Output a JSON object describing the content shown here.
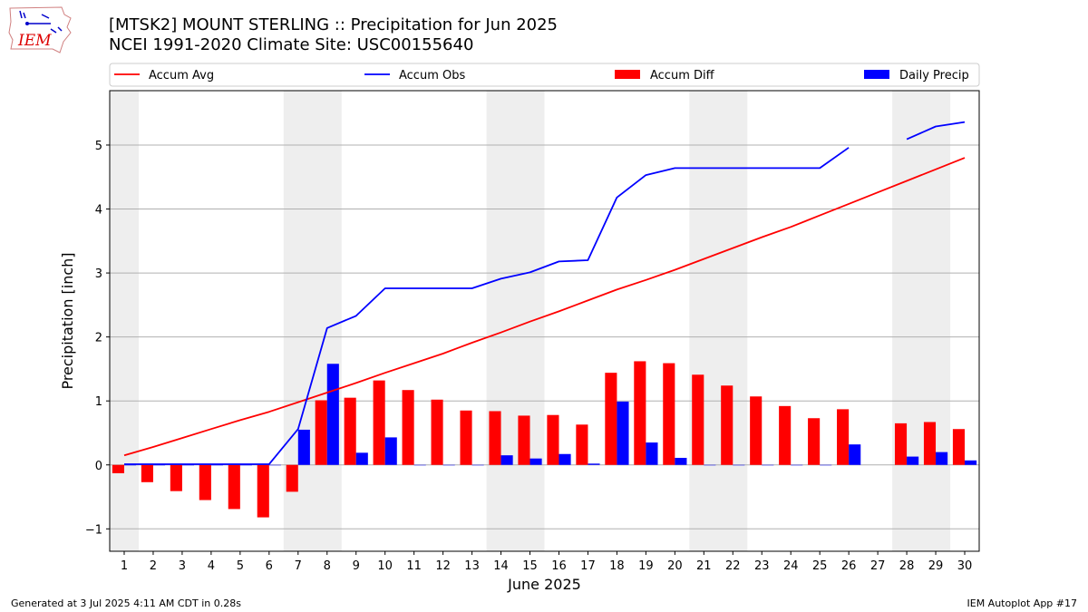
{
  "header": {
    "title_line1": "[MTSK2] MOUNT STERLING :: Precipitation for Jun 2025",
    "title_line2": "NCEI 1991-2020 Climate Site: USC00155640",
    "logo_text": "IEM"
  },
  "footer": {
    "left": "Generated at 3 Jul 2025 4:11 AM CDT in 0.28s",
    "right": "IEM Autoplot App #17"
  },
  "colors": {
    "accum_avg": "#ff0000",
    "accum_obs": "#0000ff",
    "accum_diff": "#ff0000",
    "daily_precip": "#0000ff",
    "weekend_shade": "#eeeeee",
    "grid": "#b0b0b0"
  },
  "chart_data": {
    "type": "bar",
    "xlabel": "June 2025",
    "ylabel": "Precipitation [inch]",
    "ylim": [
      -1.35,
      5.85
    ],
    "yticks": [
      -1,
      0,
      1,
      2,
      3,
      4,
      5
    ],
    "ytick_labels": [
      "−1",
      "0",
      "1",
      "2",
      "3",
      "4",
      "5"
    ],
    "x": [
      1,
      2,
      3,
      4,
      5,
      6,
      7,
      8,
      9,
      10,
      11,
      12,
      13,
      14,
      15,
      16,
      17,
      18,
      19,
      20,
      21,
      22,
      23,
      24,
      25,
      26,
      27,
      28,
      29,
      30
    ],
    "grid": "horizontal",
    "legend_position": "top",
    "shaded_days": [
      [
        1,
        1
      ],
      [
        7,
        8
      ],
      [
        14,
        15
      ],
      [
        21,
        22
      ],
      [
        28,
        29
      ]
    ],
    "series": [
      {
        "name": "Accum Avg",
        "kind": "line",
        "values": [
          0.15,
          0.28,
          0.42,
          0.56,
          0.7,
          0.83,
          0.98,
          1.13,
          1.28,
          1.44,
          1.59,
          1.74,
          1.91,
          2.07,
          2.24,
          2.4,
          2.57,
          2.74,
          2.89,
          3.05,
          3.22,
          3.39,
          3.56,
          3.72,
          3.9,
          4.08,
          4.26,
          4.44,
          4.62,
          4.8
        ]
      },
      {
        "name": "Accum Obs",
        "kind": "line",
        "values": [
          0.01,
          0.01,
          0.01,
          0.01,
          0.01,
          0.01,
          0.56,
          2.14,
          2.33,
          2.76,
          2.76,
          2.76,
          2.76,
          2.91,
          3.01,
          3.18,
          3.2,
          4.18,
          4.53,
          4.64,
          4.64,
          4.64,
          4.64,
          4.64,
          4.64,
          4.96,
          null,
          5.09,
          5.29,
          5.36
        ]
      },
      {
        "name": "Accum Diff",
        "kind": "bar",
        "values": [
          -0.13,
          -0.27,
          -0.41,
          -0.55,
          -0.69,
          -0.82,
          -0.42,
          1.01,
          1.05,
          1.32,
          1.17,
          1.02,
          0.85,
          0.84,
          0.77,
          0.78,
          0.63,
          1.44,
          1.62,
          1.59,
          1.41,
          1.24,
          1.07,
          0.92,
          0.73,
          0.87,
          null,
          0.65,
          0.67,
          0.56
        ]
      },
      {
        "name": "Daily Precip",
        "kind": "bar",
        "values": [
          0.0,
          0.0,
          0.0,
          0.0,
          0.0,
          0.0,
          0.55,
          1.58,
          0.19,
          0.43,
          0.0,
          0.0,
          0.0,
          0.15,
          0.1,
          0.17,
          0.02,
          0.99,
          0.35,
          0.11,
          0.0,
          0.0,
          0.0,
          0.0,
          0.0,
          0.32,
          null,
          0.13,
          0.2,
          0.07
        ]
      }
    ]
  }
}
